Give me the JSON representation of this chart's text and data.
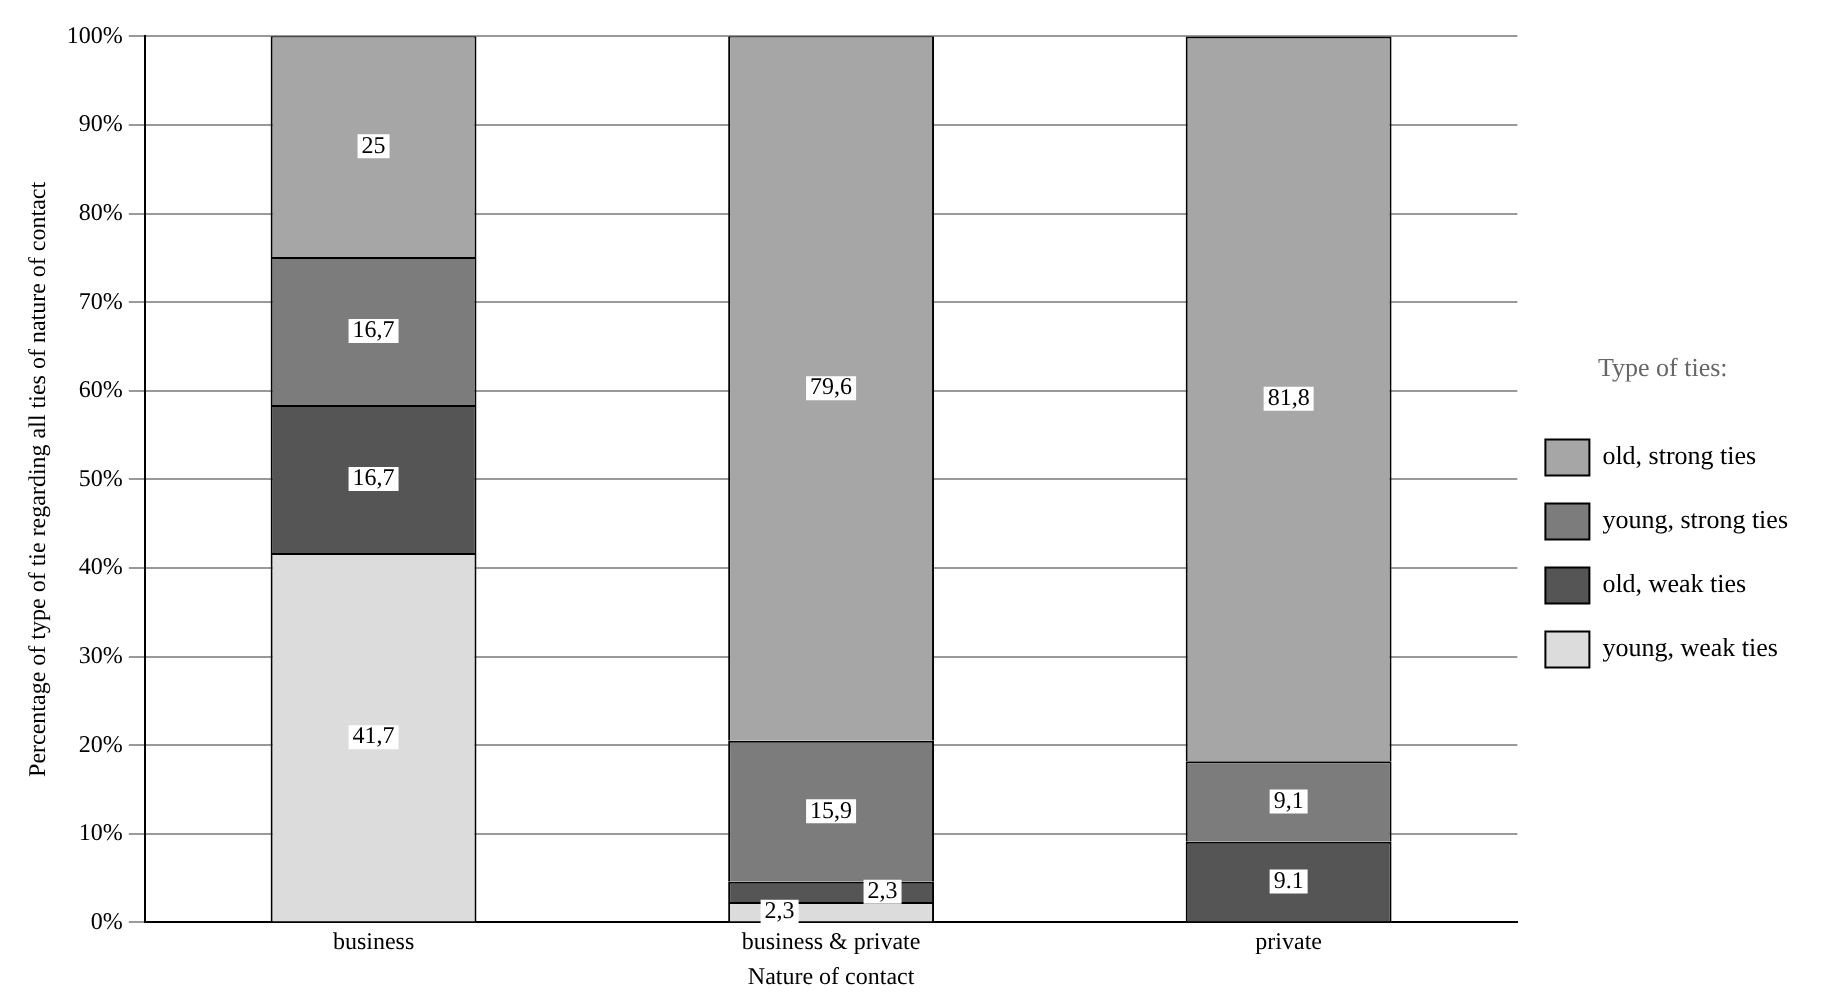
{
  "chart_data": {
    "type": "bar",
    "stacked": true,
    "xlabel": "Nature of contact",
    "ylabel": "Percentage of type of tie regarding all ties of nature of contact",
    "legend_title": "Type of ties:",
    "legend": "right",
    "grid": "y",
    "categories": [
      "business",
      "business & private",
      "private"
    ],
    "ylim": [
      0,
      100
    ],
    "yticks": [
      {
        "value": 0,
        "label": "0%"
      },
      {
        "value": 10,
        "label": "10%"
      },
      {
        "value": 20,
        "label": "20%"
      },
      {
        "value": 30,
        "label": "30%"
      },
      {
        "value": 40,
        "label": "40%"
      },
      {
        "value": 50,
        "label": "50%"
      },
      {
        "value": 60,
        "label": "60%"
      },
      {
        "value": 70,
        "label": "70%"
      },
      {
        "value": 80,
        "label": "80%"
      },
      {
        "value": 90,
        "label": "90%"
      },
      {
        "value": 100,
        "label": "100%"
      }
    ],
    "series": [
      {
        "name": "young, weak ties",
        "color": "#dcdcdc",
        "values": [
          41.7,
          2.3,
          null
        ],
        "value_labels": [
          "41,7",
          "2,3",
          null
        ]
      },
      {
        "name": "old, weak ties",
        "color": "#555555",
        "values": [
          16.7,
          2.3,
          9.1
        ],
        "value_labels": [
          "16,7",
          "2,3",
          "9.1"
        ]
      },
      {
        "name": "young, strong ties",
        "color": "#7c7c7c",
        "values": [
          16.7,
          15.9,
          9.1
        ],
        "value_labels": [
          "16,7",
          "15,9",
          "9,1"
        ]
      },
      {
        "name": "old, strong ties",
        "color": "#a6a6a6",
        "values": [
          25,
          79.6,
          81.8
        ],
        "value_labels": [
          "25",
          "79,6",
          "81,8"
        ]
      }
    ]
  }
}
